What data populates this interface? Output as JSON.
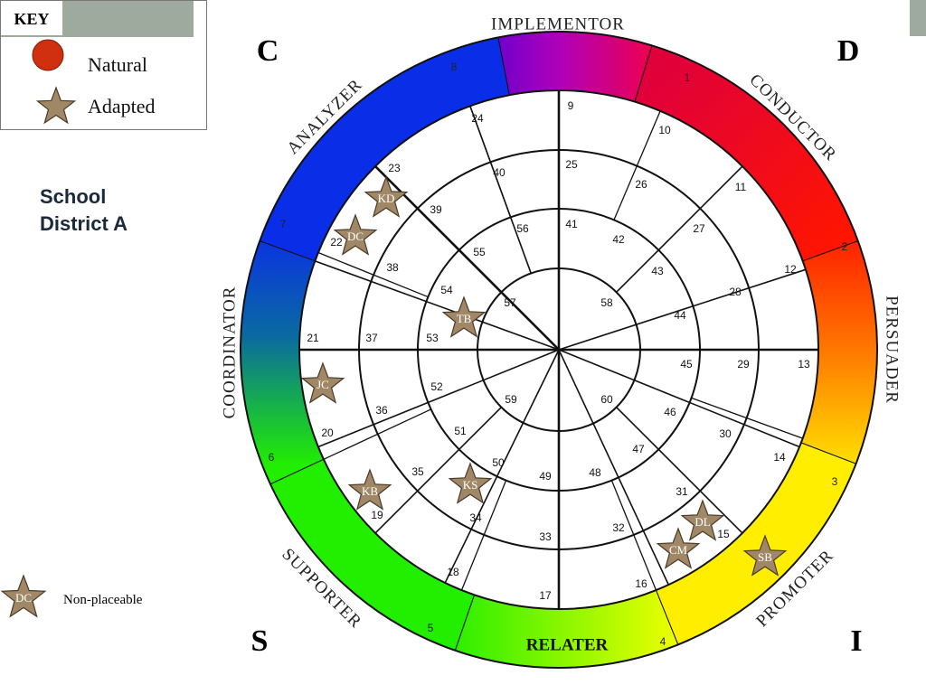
{
  "key": {
    "title": "KEY",
    "natural_label": "Natural",
    "adapted_label": "Adapted",
    "natural_color": "#d03010",
    "adapted_color": "#a08766"
  },
  "school": {
    "line1": "School",
    "line2": "District A"
  },
  "non_placeable": {
    "label": "Non-placeable",
    "initials": "DC"
  },
  "corners": {
    "c": "C",
    "d": "D",
    "s": "S",
    "i": "I"
  },
  "style_labels": {
    "implementor": "IMPLEMENTOR",
    "conductor": "CONDUCTOR",
    "persuader": "PERSUADER",
    "promoter": "PROMOTER",
    "relater": "RELATER",
    "supporter": "SUPPORTER",
    "coordinator": "COORDINATOR",
    "analyzer": "ANALYZER"
  },
  "ring_numbers": [
    "1",
    "2",
    "3",
    "4",
    "5",
    "6",
    "7",
    "8"
  ],
  "segment_numbers": [
    "9",
    "10",
    "11",
    "12",
    "13",
    "14",
    "15",
    "16",
    "17",
    "18",
    "19",
    "20",
    "21",
    "22",
    "23",
    "24",
    "25",
    "26",
    "27",
    "28",
    "29",
    "30",
    "31",
    "32",
    "33",
    "34",
    "35",
    "36",
    "37",
    "38",
    "39",
    "40",
    "41",
    "42",
    "43",
    "44",
    "45",
    "46",
    "47",
    "48",
    "49",
    "50",
    "51",
    "52",
    "53",
    "54",
    "55",
    "56",
    "57",
    "58",
    "59",
    "60"
  ],
  "people": [
    "KD",
    "DC",
    "TB",
    "JC",
    "KB",
    "KS",
    "DL",
    "CM",
    "SB"
  ]
}
